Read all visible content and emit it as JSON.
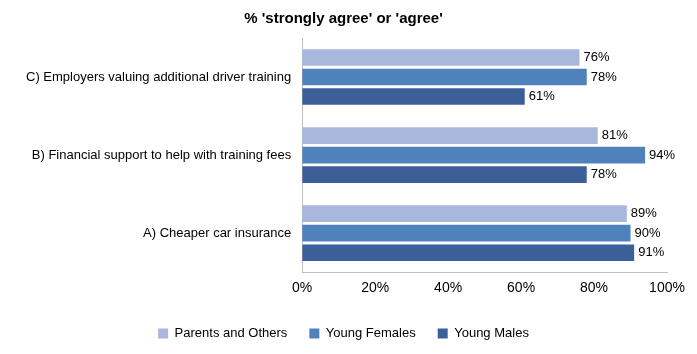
{
  "chart_data": {
    "type": "bar",
    "orientation": "horizontal",
    "title": "% 'strongly agree' or 'agree'",
    "categories": [
      "C) Employers valuing additional driver training",
      "B) Financial support to help with training fees",
      "A) Cheaper car insurance"
    ],
    "series": [
      {
        "name": "Parents and Others",
        "color": "#a9b7dc",
        "values": [
          76,
          81,
          89
        ],
        "value_labels": [
          "76%",
          "81%",
          "89%"
        ]
      },
      {
        "name": "Young Females",
        "color": "#4f81bd",
        "values": [
          78,
          94,
          90
        ],
        "value_labels": [
          "78%",
          "94%",
          "90%"
        ]
      },
      {
        "name": "Young Males",
        "color": "#3b5f98",
        "values": [
          61,
          78,
          91
        ],
        "value_labels": [
          "61%",
          "78%",
          "91%"
        ]
      }
    ],
    "xlim": [
      0,
      100
    ],
    "xticks": [
      {
        "value": 0,
        "label": "0%"
      },
      {
        "value": 20,
        "label": "20%"
      },
      {
        "value": 40,
        "label": "40%"
      },
      {
        "value": 60,
        "label": "60%"
      },
      {
        "value": 80,
        "label": "80%"
      },
      {
        "value": 100,
        "label": "100%"
      }
    ],
    "grid": false,
    "legend": "bottom",
    "data_labels": true
  }
}
